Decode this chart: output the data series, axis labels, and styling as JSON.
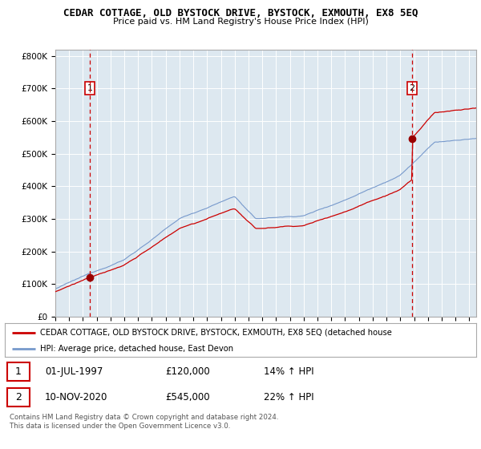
{
  "title": "CEDAR COTTAGE, OLD BYSTOCK DRIVE, BYSTOCK, EXMOUTH, EX8 5EQ",
  "subtitle": "Price paid vs. HM Land Registry's House Price Index (HPI)",
  "background_color": "#dde8f0",
  "ylim": [
    0,
    820000
  ],
  "yticks": [
    0,
    100000,
    200000,
    300000,
    400000,
    500000,
    600000,
    700000,
    800000
  ],
  "ytick_labels": [
    "£0",
    "£100K",
    "£200K",
    "£300K",
    "£400K",
    "£500K",
    "£600K",
    "£700K",
    "£800K"
  ],
  "xstart": 1995,
  "xend": 2025,
  "purchase1_date": 1997.5,
  "purchase1_price": 120000,
  "purchase2_date": 2020.85,
  "purchase2_price": 545000,
  "red_line_color": "#cc0000",
  "blue_line_color": "#7799cc",
  "marker_color": "#990000",
  "vline_color": "#cc0000",
  "legend_label_red": "CEDAR COTTAGE, OLD BYSTOCK DRIVE, BYSTOCK, EXMOUTH, EX8 5EQ (detached house",
  "legend_label_blue": "HPI: Average price, detached house, East Devon",
  "annotation1_label": "1",
  "annotation2_label": "2",
  "table_row1": [
    "1",
    "01-JUL-1997",
    "£120,000",
    "14% ↑ HPI"
  ],
  "table_row2": [
    "2",
    "10-NOV-2020",
    "£545,000",
    "22% ↑ HPI"
  ],
  "footnote": "Contains HM Land Registry data © Crown copyright and database right 2024.\nThis data is licensed under the Open Government Licence v3.0.",
  "grid_color": "#c8d8e8",
  "border_color": "#aaaaaa"
}
